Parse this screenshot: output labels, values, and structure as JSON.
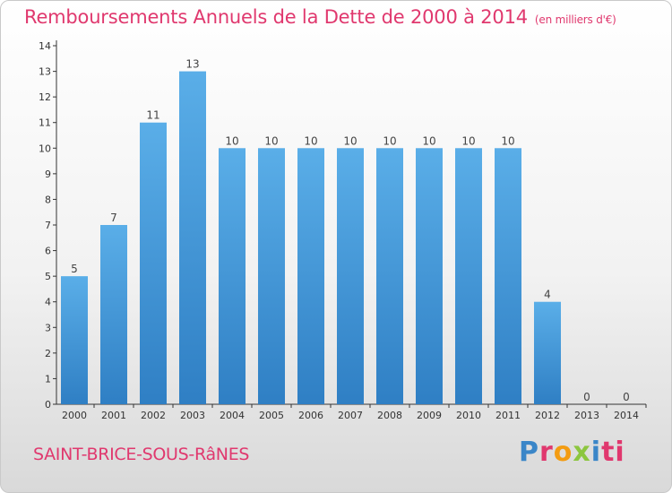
{
  "header": {
    "title": "Remboursements Annuels de la Dette de 2000 à 2014",
    "unit": "(en milliers d'€)"
  },
  "footer": {
    "commune": "SAINT-BRICE-SOUS-RâNES",
    "brand_letters": [
      "P",
      "r",
      "o",
      "x",
      "i",
      "ti"
    ]
  },
  "colors": {
    "title": "#e0386e",
    "bar_light": "#5aaee8",
    "bar_dark": "#2f7fc4",
    "axis": "#333333"
  },
  "chart_data": {
    "type": "bar",
    "title": "Remboursements Annuels de la Dette de 2000 à 2014",
    "xlabel": "",
    "ylabel": "",
    "categories": [
      "2000",
      "2001",
      "2002",
      "2003",
      "2004",
      "2005",
      "2006",
      "2007",
      "2008",
      "2009",
      "2010",
      "2011",
      "2012",
      "2013",
      "2014"
    ],
    "values": [
      5,
      7,
      11,
      13,
      10,
      10,
      10,
      10,
      10,
      10,
      10,
      10,
      4,
      0,
      0
    ],
    "ylim": [
      0,
      14
    ],
    "yticks": [
      0,
      1,
      2,
      3,
      4,
      5,
      6,
      7,
      8,
      9,
      10,
      11,
      12,
      13,
      14
    ],
    "grid": false,
    "data_labels": true
  }
}
